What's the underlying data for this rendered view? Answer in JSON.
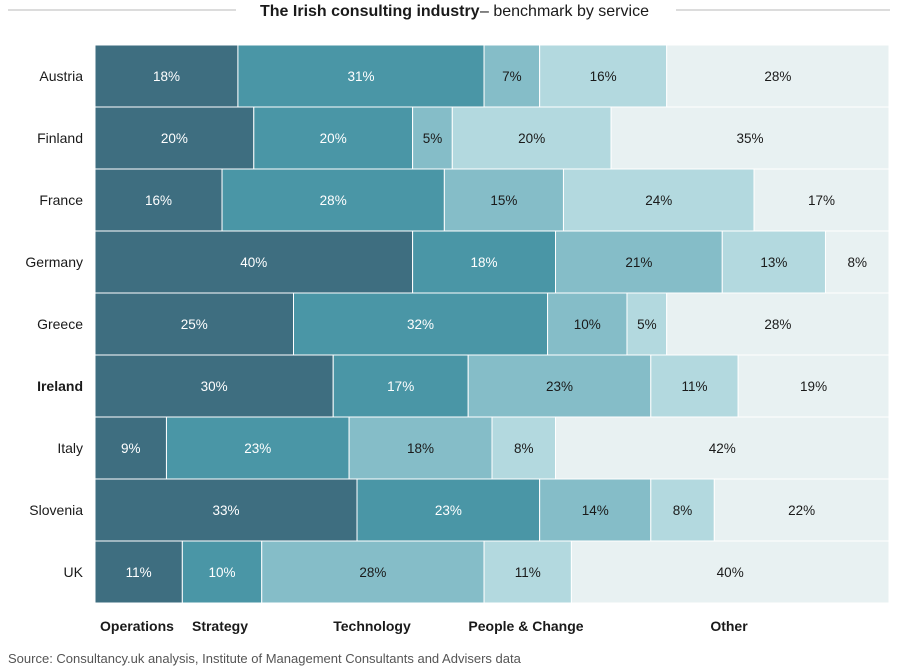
{
  "title": {
    "main": "The Irish consulting industry",
    "sub": "– benchmark by service"
  },
  "source": "Source: Consultancy.uk analysis, Institute of Management Consultants and Advisers data",
  "colors": {
    "Operations": "#3e6e80",
    "Strategy": "#4a96a6",
    "Technology": "#85bdc8",
    "People & Change": "#b3d9df",
    "Other": "#e8f1f2",
    "dark_text": "#1a1a1a",
    "light_text": "#ffffff"
  },
  "chart_data": {
    "type": "bar",
    "orientation": "horizontal",
    "stacked": "100%",
    "title": "The Irish consulting industry – benchmark by service",
    "categories": [
      "Austria",
      "Finland",
      "France",
      "Germany",
      "Greece",
      "Ireland",
      "Italy",
      "Slovenia",
      "UK"
    ],
    "highlight_category": "Ireland",
    "series": [
      {
        "name": "Operations",
        "values": [
          18,
          20,
          16,
          40,
          25,
          30,
          9,
          33,
          11
        ]
      },
      {
        "name": "Strategy",
        "values": [
          31,
          20,
          28,
          18,
          32,
          17,
          23,
          23,
          10
        ]
      },
      {
        "name": "Technology",
        "values": [
          7,
          5,
          15,
          21,
          10,
          23,
          18,
          14,
          28
        ]
      },
      {
        "name": "People & Change",
        "values": [
          16,
          20,
          24,
          13,
          5,
          11,
          8,
          8,
          11
        ]
      },
      {
        "name": "Other",
        "values": [
          28,
          35,
          17,
          8,
          28,
          19,
          42,
          22,
          40
        ]
      }
    ],
    "shade_overrides": {
      "Austria": [
        "Operations",
        "Strategy",
        "Technology",
        "People & Change",
        "Other"
      ],
      "Finland": [
        "Operations",
        "Strategy",
        "Technology",
        "People & Change",
        "Other"
      ],
      "France": [
        "Operations",
        "Strategy",
        "Technology",
        "People & Change",
        "Other"
      ],
      "Germany": [
        "Operations",
        "Strategy",
        "Technology",
        "People & Change",
        "Other"
      ],
      "Greece": [
        "Operations",
        "Strategy",
        "Technology",
        "People & Change",
        "Other"
      ],
      "Ireland": [
        "Operations",
        "Strategy",
        "Technology",
        "People & Change",
        "Other"
      ],
      "Italy": [
        "Operations",
        "Strategy",
        "Technology",
        "People & Change",
        "Other"
      ],
      "Slovenia": [
        "Operations",
        "Strategy",
        "Technology",
        "People & Change",
        "Other"
      ],
      "UK": [
        "Operations",
        "Strategy",
        "Technology",
        "People & Change",
        "Other"
      ]
    },
    "value_suffix": "%",
    "xlim": [
      0,
      100
    ],
    "legend_placement": "bottom",
    "grid": false
  }
}
